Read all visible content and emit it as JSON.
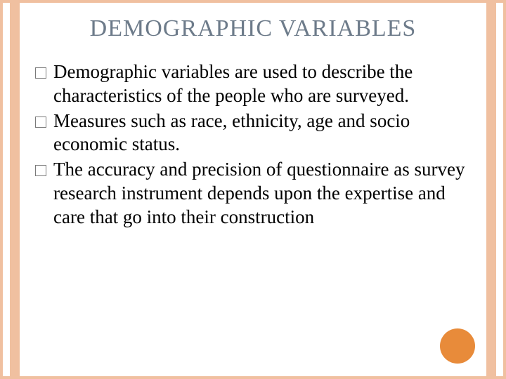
{
  "slide": {
    "title": "DEMOGRAPHIC VARIABLES",
    "title_color": "#6d7b8a",
    "title_fontsize": 34,
    "bullets": [
      "Demographic variables are used to describe the characteristics of the people who are surveyed.",
      "Measures such as race, ethnicity, age and socio economic status.",
      "The accuracy and precision of questionnaire as survey research instrument depends upon the expertise and care that go into their construction"
    ],
    "body_fontsize": 27,
    "body_color": "#000000",
    "border_color": "#f0c0a0",
    "accent_circle_color": "#e88b3a",
    "background_color": "#ffffff"
  }
}
